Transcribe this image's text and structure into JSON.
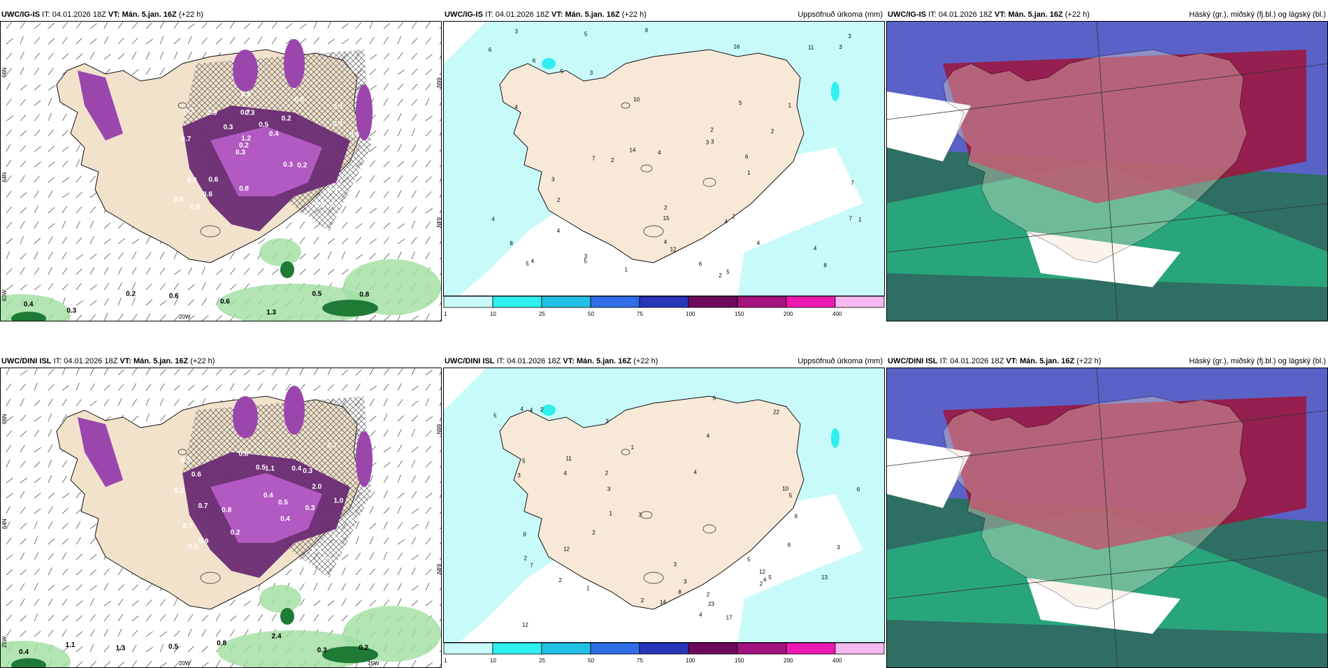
{
  "rows": [
    {
      "model": "UWC/IG-IS",
      "panels": [
        {
          "model": "UWC/IG-IS",
          "it_label": "IT:",
          "it": "04.01.2026 18Z",
          "vt_label": "VT:",
          "vt": "Mán. 5.jan. 16Z",
          "lead": "(+22 h)",
          "right": "",
          "type": "precip-type"
        },
        {
          "model": "UWC/IG-IS",
          "it_label": "IT:",
          "it": "04.01.2026 18Z",
          "vt_label": "VT:",
          "vt": "Mán. 5.jan. 16Z",
          "lead": "(+22 h)",
          "right": "Uppsöfnuð úrkoma (mm)",
          "type": "accum"
        },
        {
          "model": "UWC/IG-IS",
          "it_label": "IT:",
          "it": "04.01.2026 18Z",
          "vt_label": "VT:",
          "vt": "Mán. 5.jan. 16Z",
          "lead": "(+22 h)",
          "right": "Háský (gr.), miðský (fj.bl.) og lágský (bl.)",
          "type": "cloud"
        }
      ]
    },
    {
      "model": "UWC/DINI ISL",
      "panels": [
        {
          "model": "UWC/DINI ISL",
          "it_label": "IT:",
          "it": "04.01.2026 18Z",
          "vt_label": "VT:",
          "vt": "Mán. 5.jan. 16Z",
          "lead": "(+22 h)",
          "right": "",
          "type": "precip-type"
        },
        {
          "model": "UWC/DINI ISL",
          "it_label": "IT:",
          "it": "04.01.2026 18Z",
          "vt_label": "VT:",
          "vt": "Mán. 5.jan. 16Z",
          "lead": "(+22 h)",
          "right": "Uppsöfnuð úrkoma (mm)",
          "type": "accum"
        },
        {
          "model": "UWC/DINI ISL",
          "it_label": "IT:",
          "it": "04.01.2026 18Z",
          "vt_label": "VT:",
          "vt": "Mán. 5.jan. 16Z",
          "lead": "(+22 h)",
          "right": "Háský (gr.), miðský (fj.bl.) og lágský (bl.)",
          "type": "cloud"
        }
      ]
    }
  ],
  "colorbar": {
    "ticks": [
      "1",
      "10",
      "25",
      "50",
      "75",
      "100",
      "150",
      "200",
      "400"
    ],
    "colors": [
      "#c9fafa",
      "#2ef0f0",
      "#22c0e6",
      "#2f6ee6",
      "#2a34b8",
      "#6e0a5e",
      "#a4127e",
      "#ee18b2",
      "#f5b8f0"
    ]
  },
  "grid_labels": {
    "row1": {
      "lat_left": [
        "66N",
        "64N",
        "63W"
      ],
      "lon_bottom": [
        "20W"
      ],
      "lat_right": [
        "66N",
        "64N"
      ]
    },
    "row2": {
      "lat_left": [
        "66N",
        "64N",
        "25W"
      ],
      "lon_bottom": [
        "20W",
        "15W"
      ],
      "lat_right": [
        "66N",
        "64N"
      ]
    }
  },
  "value_labels": {
    "ig_precip": [
      "0.5",
      "0.7",
      "0.4",
      "0.3",
      "0.2",
      "0.6",
      "0.7",
      "0.5",
      "0.4",
      "0.3",
      "0.8",
      "0.6",
      "0.3",
      "0.4",
      "0.2",
      "0.7",
      "0.5",
      "0.6",
      "0.3",
      "0.4",
      "0.2",
      "0.8",
      "1.2",
      "0.9",
      "0.8",
      "0.6",
      "0.9",
      "0.7",
      "0.6",
      "1.3",
      "0.5",
      "0.8",
      "0.4",
      "0.3",
      "0.2",
      "0.6"
    ],
    "dini_precip": [
      "0.5",
      "0.7",
      "0.4",
      "0.3",
      "0.2",
      "0.6",
      "0.9",
      "0.8",
      "0.3",
      "0.5",
      "0.4",
      "0.6",
      "0.2",
      "0.8",
      "0.5",
      "0.7",
      "0.3",
      "0.4",
      "0.2",
      "0.5",
      "0.7",
      "1.1",
      "2.0",
      "1.7",
      "1.0",
      "1.1",
      "1.3",
      "0.5",
      "0.8",
      "2.4",
      "0.3",
      "0.2",
      "0.4"
    ],
    "ig_accum": [
      "1",
      "2",
      "3",
      "4",
      "5",
      "6",
      "7",
      "8",
      "9",
      "10",
      "11",
      "12",
      "14",
      "15",
      "16",
      "3",
      "4",
      "5",
      "2",
      "6",
      "4",
      "3",
      "2",
      "5",
      "1",
      "3",
      "4",
      "2",
      "3",
      "1",
      "4",
      "5",
      "2",
      "3",
      "4",
      "6",
      "7",
      "8",
      "5",
      "4",
      "3",
      "2",
      "1",
      "4",
      "3",
      "2",
      "7",
      "6",
      "5",
      "4"
    ],
    "dini_accum": [
      "2",
      "3",
      "4",
      "5",
      "6",
      "7",
      "8",
      "9",
      "10",
      "11",
      "12",
      "13",
      "14",
      "17",
      "22",
      "23",
      "12",
      "4",
      "3",
      "5",
      "2",
      "6",
      "4",
      "3",
      "2",
      "1",
      "5",
      "4",
      "3",
      "2",
      "4",
      "5",
      "6",
      "3",
      "2",
      "1",
      "4",
      "5",
      "3",
      "2",
      "12",
      "2",
      "1",
      "2",
      "3",
      "4",
      "5"
    ]
  }
}
